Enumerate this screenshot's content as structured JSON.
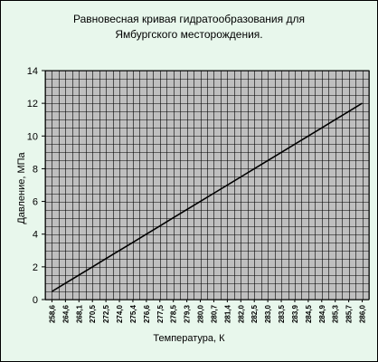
{
  "chart_data": {
    "type": "line",
    "title": "Равновесная кривая гидратообразования для",
    "subtitle": "Ямбургского месторождения.",
    "xlabel": "Температура, К",
    "ylabel": "Давление, МПа",
    "ylim": [
      0,
      14
    ],
    "y_ticks": [
      "0",
      "2",
      "4",
      "6",
      "8",
      "10",
      "12",
      "14"
    ],
    "x_ticks": [
      "258,6",
      "264,6",
      "268,1",
      "270,5",
      "272,5",
      "274,0",
      "275,4",
      "276,6",
      "277,5",
      "278,5",
      "279,3",
      "280,0",
      "280,7",
      "281,4",
      "282,0",
      "282,5",
      "283,0",
      "283,5",
      "283,9",
      "284,5",
      "284,9",
      "285,3",
      "285,7",
      "286,0"
    ],
    "grid": true,
    "legend": "none",
    "series": [
      {
        "values": [
          0.5,
          1.0,
          1.5,
          2.0,
          2.5,
          3.0,
          3.5,
          4.0,
          4.5,
          5.0,
          5.5,
          6.0,
          6.5,
          7.0,
          7.5,
          8.0,
          8.5,
          9.0,
          9.5,
          10.0,
          10.5,
          11.0,
          11.5,
          12.0
        ]
      }
    ],
    "colors": {
      "background": "#e8f7ec",
      "plot_area": "#bfbfbf",
      "grid": "#000000",
      "line": "#000000"
    }
  }
}
